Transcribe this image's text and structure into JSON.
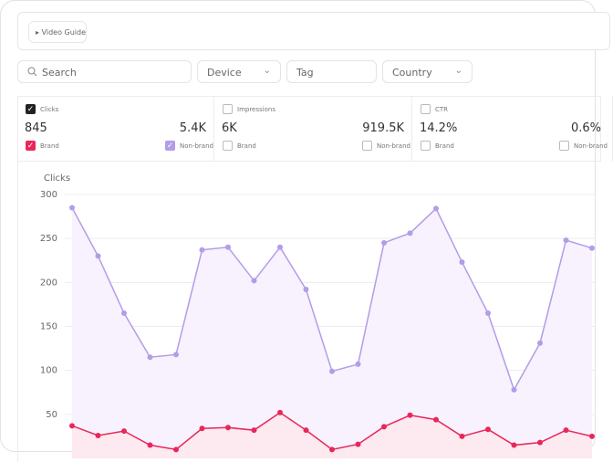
{
  "header": {
    "video_guide": "Video Guide"
  },
  "filters": {
    "search": "Search",
    "device": "Device",
    "tag": "Tag",
    "country": "Country"
  },
  "metrics": [
    {
      "label": "Clicks",
      "checked": true,
      "brand_value": "845",
      "nonbrand_value": "5.4K",
      "brand": "Brand",
      "nonbrand": "Non-brand",
      "brand_checked": true,
      "nonbrand_checked": true
    },
    {
      "label": "Impressions",
      "checked": false,
      "brand_value": "6K",
      "nonbrand_value": "919.5K",
      "brand": "Brand",
      "nonbrand": "Non-brand",
      "brand_checked": false,
      "nonbrand_checked": false
    },
    {
      "label": "CTR",
      "checked": false,
      "brand_value": "14.2%",
      "nonbrand_value": "0.6%",
      "brand": "Brand",
      "nonbrand": "Non-brand",
      "brand_checked": false,
      "nonbrand_checked": false
    }
  ],
  "chart_data": {
    "type": "line",
    "title": "Clicks",
    "ylim": [
      0,
      300
    ],
    "yticks": [
      50,
      100,
      150,
      200,
      250,
      300
    ],
    "grid": true,
    "series": [
      {
        "color": "#b39ce8",
        "values": [
          285,
          230,
          165,
          115,
          118,
          237,
          240,
          202,
          240,
          192,
          99,
          107,
          245,
          256,
          284,
          223,
          165,
          78,
          131,
          248,
          239
        ]
      },
      {
        "color": "#e8275a",
        "values": [
          37,
          26,
          31,
          15,
          10,
          34,
          35,
          32,
          52,
          32,
          10,
          16,
          36,
          49,
          44,
          25,
          33,
          15,
          18,
          32,
          25
        ]
      }
    ]
  }
}
